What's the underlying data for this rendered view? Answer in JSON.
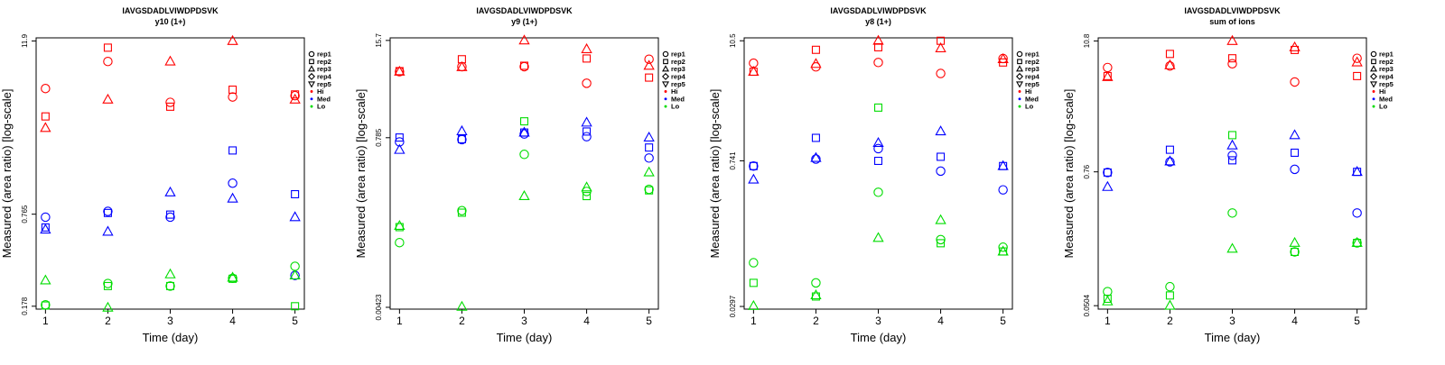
{
  "colors": {
    "Hi": "#ff0000",
    "Med": "#0000ff",
    "Lo": "#00dd00"
  },
  "legend": [
    {
      "label": "rep1",
      "shape": "circle"
    },
    {
      "label": "rep2",
      "shape": "square"
    },
    {
      "label": "rep3",
      "shape": "triangle-up"
    },
    {
      "label": "rep4",
      "shape": "diamond"
    },
    {
      "label": "rep5",
      "shape": "triangle-down"
    },
    {
      "label": "Hi",
      "shape": "dot",
      "group": "Hi"
    },
    {
      "label": "Med",
      "shape": "dot",
      "group": "Med"
    },
    {
      "label": "Lo",
      "shape": "dot",
      "group": "Lo"
    }
  ],
  "chart_data": [
    {
      "type": "scatter",
      "title": "IAVGSDADLVIWDPDSVK",
      "subtitle": "y10 (1+)",
      "xlabel": "Time (day)",
      "ylabel": "Measured (area ratio) [log-scale]",
      "x_ticks": [
        1,
        2,
        3,
        4,
        5
      ],
      "y_ticks": [
        "11.9",
        "0.765",
        "0.178"
      ],
      "y_tick_values": [
        11.9,
        0.765,
        0.178
      ],
      "yscale": "log",
      "ylim": [
        0.17,
        12.5
      ],
      "series": [
        {
          "group": "Hi",
          "rep": "rep1",
          "x": [
            1,
            2,
            3,
            4,
            5
          ],
          "y": [
            5.6,
            8.6,
            4.5,
            4.9,
            5.0
          ]
        },
        {
          "group": "Hi",
          "rep": "rep2",
          "x": [
            1,
            2,
            3,
            4,
            5
          ],
          "y": [
            3.6,
            10.7,
            4.2,
            5.5,
            5.1
          ]
        },
        {
          "group": "Hi",
          "rep": "rep3",
          "x": [
            1,
            2,
            3,
            4,
            5
          ],
          "y": [
            3.0,
            4.7,
            8.6,
            11.9,
            4.7
          ]
        },
        {
          "group": "Med",
          "rep": "rep1",
          "x": [
            1,
            2,
            3,
            4,
            5
          ],
          "y": [
            0.73,
            0.8,
            0.73,
            1.25,
            0.29
          ]
        },
        {
          "group": "Med",
          "rep": "rep2",
          "x": [
            1,
            2,
            3,
            4,
            5
          ],
          "y": [
            0.62,
            0.78,
            0.76,
            2.1,
            1.05
          ]
        },
        {
          "group": "Med",
          "rep": "rep3",
          "x": [
            1,
            2,
            3,
            4,
            5
          ],
          "y": [
            0.6,
            0.58,
            1.08,
            0.98,
            0.73
          ]
        },
        {
          "group": "Lo",
          "rep": "rep1",
          "x": [
            1,
            2,
            3,
            4,
            5
          ],
          "y": [
            0.182,
            0.255,
            0.245,
            0.277,
            0.335
          ]
        },
        {
          "group": "Lo",
          "rep": "rep2",
          "x": [
            1,
            2,
            3,
            4,
            5
          ],
          "y": [
            0.18,
            0.245,
            0.245,
            0.275,
            0.178
          ]
        },
        {
          "group": "Lo",
          "rep": "rep3",
          "x": [
            1,
            2,
            3,
            4,
            5
          ],
          "y": [
            0.268,
            0.174,
            0.295,
            0.28,
            0.29
          ]
        }
      ]
    },
    {
      "type": "scatter",
      "title": "IAVGSDADLVIWDPDSVK",
      "subtitle": "y9 (1+)",
      "xlabel": "Time (day)",
      "ylabel": "Measured (area ratio) [log-scale]",
      "x_ticks": [
        1,
        2,
        3,
        4,
        5
      ],
      "y_ticks": [
        "15.7",
        "0.785",
        "0.00423"
      ],
      "y_tick_values": [
        15.7,
        0.785,
        0.00423
      ],
      "yscale": "log",
      "ylim": [
        0.004,
        17
      ],
      "series": [
        {
          "group": "Hi",
          "rep": "rep1",
          "x": [
            1,
            2,
            3,
            4,
            5
          ],
          "y": [
            6.0,
            7.0,
            7.0,
            4.2,
            8.8
          ]
        },
        {
          "group": "Hi",
          "rep": "rep2",
          "x": [
            1,
            2,
            3,
            4,
            5
          ],
          "y": [
            6.1,
            8.8,
            7.2,
            9.0,
            5.0
          ]
        },
        {
          "group": "Hi",
          "rep": "rep3",
          "x": [
            1,
            2,
            3,
            4,
            5
          ],
          "y": [
            6.0,
            6.9,
            15.7,
            12.0,
            7.2
          ]
        },
        {
          "group": "Med",
          "rep": "rep1",
          "x": [
            1,
            2,
            3,
            4,
            5
          ],
          "y": [
            0.69,
            0.74,
            0.88,
            0.81,
            0.42
          ]
        },
        {
          "group": "Med",
          "rep": "rep2",
          "x": [
            1,
            2,
            3,
            4,
            5
          ],
          "y": [
            0.79,
            0.75,
            0.92,
            0.95,
            0.58
          ]
        },
        {
          "group": "Med",
          "rep": "rep3",
          "x": [
            1,
            2,
            3,
            4,
            5
          ],
          "y": [
            0.54,
            0.96,
            0.92,
            1.25,
            0.79
          ]
        },
        {
          "group": "Lo",
          "rep": "rep1",
          "x": [
            1,
            2,
            3,
            4,
            5
          ],
          "y": [
            0.031,
            0.083,
            0.47,
            0.15,
            0.16
          ]
        },
        {
          "group": "Lo",
          "rep": "rep2",
          "x": [
            1,
            2,
            3,
            4,
            5
          ],
          "y": [
            0.05,
            0.078,
            1.3,
            0.13,
            0.155
          ]
        },
        {
          "group": "Lo",
          "rep": "rep3",
          "x": [
            1,
            2,
            3,
            4,
            5
          ],
          "y": [
            0.052,
            0.0043,
            0.13,
            0.17,
            0.27
          ]
        }
      ]
    },
    {
      "type": "scatter",
      "title": "IAVGSDADLVIWDPDSVK",
      "subtitle": "y8 (1+)",
      "xlabel": "Time (day)",
      "ylabel": "Measured (area ratio) [log-scale]",
      "x_ticks": [
        1,
        2,
        3,
        4,
        5
      ],
      "y_ticks": [
        "10.5",
        "0.741",
        "0.0297"
      ],
      "y_tick_values": [
        10.5,
        0.741,
        0.0297
      ],
      "yscale": "log",
      "ylim": [
        0.028,
        11.2
      ],
      "series": [
        {
          "group": "Hi",
          "rep": "rep1",
          "x": [
            1,
            2,
            3,
            4,
            5
          ],
          "y": [
            6.4,
            5.9,
            6.5,
            5.1,
            7.1
          ]
        },
        {
          "group": "Hi",
          "rep": "rep2",
          "x": [
            1,
            2,
            3,
            4,
            5
          ],
          "y": [
            5.3,
            8.6,
            9.1,
            10.5,
            6.5
          ]
        },
        {
          "group": "Hi",
          "rep": "rep3",
          "x": [
            1,
            2,
            3,
            4,
            5
          ],
          "y": [
            5.3,
            6.3,
            10.5,
            8.9,
            7.0
          ]
        },
        {
          "group": "Med",
          "rep": "rep1",
          "x": [
            1,
            2,
            3,
            4,
            5
          ],
          "y": [
            0.66,
            0.77,
            0.97,
            0.59,
            0.39
          ]
        },
        {
          "group": "Med",
          "rep": "rep2",
          "x": [
            1,
            2,
            3,
            4,
            5
          ],
          "y": [
            0.66,
            1.23,
            0.74,
            0.81,
            0.66
          ]
        },
        {
          "group": "Med",
          "rep": "rep3",
          "x": [
            1,
            2,
            3,
            4,
            5
          ],
          "y": [
            0.49,
            0.79,
            1.1,
            1.42,
            0.66
          ]
        },
        {
          "group": "Lo",
          "rep": "rep1",
          "x": [
            1,
            2,
            3,
            4,
            5
          ],
          "y": [
            0.078,
            0.05,
            0.37,
            0.13,
            0.11
          ]
        },
        {
          "group": "Lo",
          "rep": "rep2",
          "x": [
            1,
            2,
            3,
            4,
            5
          ],
          "y": [
            0.05,
            0.037,
            2.4,
            0.12,
            0.1
          ]
        },
        {
          "group": "Lo",
          "rep": "rep3",
          "x": [
            1,
            2,
            3,
            4,
            5
          ],
          "y": [
            0.03,
            0.038,
            0.135,
            0.2,
            0.1
          ]
        }
      ]
    },
    {
      "type": "scatter",
      "title": "IAVGSDADLVIWDPDSVK",
      "subtitle": "sum of ions",
      "xlabel": "Time (day)",
      "ylabel": "Measured (area ratio) [log-scale]",
      "x_ticks": [
        1,
        2,
        3,
        4,
        5
      ],
      "y_ticks": [
        "10.8",
        "0.76",
        "0.0504"
      ],
      "y_tick_values": [
        10.8,
        0.76,
        0.0504
      ],
      "yscale": "log",
      "ylim": [
        0.047,
        11.5
      ],
      "series": [
        {
          "group": "Hi",
          "rep": "rep1",
          "x": [
            1,
            2,
            3,
            4,
            5
          ],
          "y": [
            6.3,
            6.5,
            6.8,
            4.7,
            7.6
          ]
        },
        {
          "group": "Hi",
          "rep": "rep2",
          "x": [
            1,
            2,
            3,
            4,
            5
          ],
          "y": [
            5.3,
            8.3,
            7.6,
            9.0,
            5.3
          ]
        },
        {
          "group": "Hi",
          "rep": "rep3",
          "x": [
            1,
            2,
            3,
            4,
            5
          ],
          "y": [
            5.2,
            6.6,
            10.8,
            9.5,
            7.0
          ]
        },
        {
          "group": "Med",
          "rep": "rep1",
          "x": [
            1,
            2,
            3,
            4,
            5
          ],
          "y": [
            0.75,
            0.93,
            1.06,
            0.8,
            0.33
          ]
        },
        {
          "group": "Med",
          "rep": "rep2",
          "x": [
            1,
            2,
            3,
            4,
            5
          ],
          "y": [
            0.75,
            1.19,
            0.96,
            1.12,
            0.76
          ]
        },
        {
          "group": "Med",
          "rep": "rep3",
          "x": [
            1,
            2,
            3,
            4,
            5
          ],
          "y": [
            0.56,
            0.94,
            1.3,
            1.6,
            0.76
          ]
        },
        {
          "group": "Lo",
          "rep": "rep1",
          "x": [
            1,
            2,
            3,
            4,
            5
          ],
          "y": [
            0.067,
            0.074,
            0.33,
            0.15,
            0.18
          ]
        },
        {
          "group": "Lo",
          "rep": "rep2",
          "x": [
            1,
            2,
            3,
            4,
            5
          ],
          "y": [
            0.058,
            0.062,
            1.6,
            0.15,
            0.18
          ]
        },
        {
          "group": "Lo",
          "rep": "rep3",
          "x": [
            1,
            2,
            3,
            4,
            5
          ],
          "y": [
            0.055,
            0.0504,
            0.16,
            0.18,
            0.18
          ]
        }
      ]
    }
  ]
}
